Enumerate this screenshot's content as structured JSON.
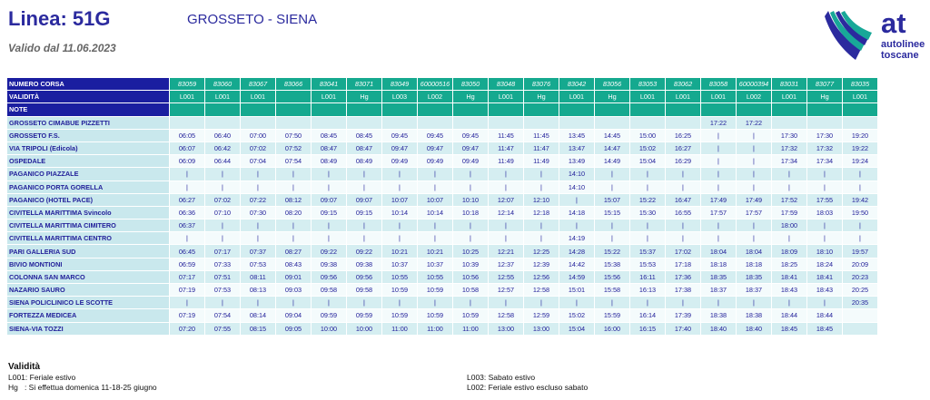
{
  "header": {
    "title": "Linea: 51G",
    "route": "GROSSETO - SIENA",
    "valid": "Valido dal 11.06.2023",
    "logo_at": "at",
    "logo_line1": "autolinee",
    "logo_line2": "toscane"
  },
  "colors": {
    "primary": "#1a1ea0",
    "teal": "#15a98f",
    "row_light": "#d5eef1",
    "label_bg": "#c9e8ed"
  },
  "table": {
    "labels": {
      "numero": "NUMERO CORSA",
      "validita": "VALIDITÀ",
      "note": "NOTE"
    },
    "runs": [
      "83059",
      "83060",
      "83067",
      "83066",
      "83041",
      "83071",
      "83049",
      "60000516",
      "83050",
      "83048",
      "83076",
      "83042",
      "83056",
      "83053",
      "83062",
      "83058",
      "60000394",
      "83031",
      "83077",
      "83035"
    ],
    "validita": [
      "L001",
      "L001",
      "L001",
      "",
      "L001",
      "Hg",
      "L003",
      "L002",
      "Hg",
      "L001",
      "Hg",
      "L001",
      "Hg",
      "L001",
      "L001",
      "L001",
      "L002",
      "L001",
      "Hg",
      "L001"
    ],
    "stops": [
      {
        "name": "GROSSETO CIMABUE PIZZETTI",
        "times": [
          "",
          "",
          "",
          "",
          "",
          "",
          "",
          "",
          "",
          "",
          "",
          "",
          "",
          "",
          "",
          "17:22",
          "17:22",
          "",
          "",
          ""
        ]
      },
      {
        "name": "GROSSETO F.S.",
        "times": [
          "06:05",
          "06:40",
          "07:00",
          "07:50",
          "08:45",
          "08:45",
          "09:45",
          "09:45",
          "09:45",
          "11:45",
          "11:45",
          "13:45",
          "14:45",
          "15:00",
          "16:25",
          "|",
          "|",
          "17:30",
          "17:30",
          "19:20"
        ]
      },
      {
        "name": "VIA TRIPOLI (Edicola)",
        "times": [
          "06:07",
          "06:42",
          "07:02",
          "07:52",
          "08:47",
          "08:47",
          "09:47",
          "09:47",
          "09:47",
          "11:47",
          "11:47",
          "13:47",
          "14:47",
          "15:02",
          "16:27",
          "|",
          "|",
          "17:32",
          "17:32",
          "19:22"
        ]
      },
      {
        "name": "OSPEDALE",
        "times": [
          "06:09",
          "06:44",
          "07:04",
          "07:54",
          "08:49",
          "08:49",
          "09:49",
          "09:49",
          "09:49",
          "11:49",
          "11:49",
          "13:49",
          "14:49",
          "15:04",
          "16:29",
          "|",
          "|",
          "17:34",
          "17:34",
          "19:24"
        ]
      },
      {
        "name": "PAGANICO PIAZZALE",
        "times": [
          "|",
          "|",
          "|",
          "|",
          "|",
          "|",
          "|",
          "|",
          "|",
          "|",
          "|",
          "14:10",
          "|",
          "|",
          "|",
          "|",
          "|",
          "|",
          "|",
          "|"
        ]
      },
      {
        "name": "PAGANICO PORTA GORELLA",
        "times": [
          "|",
          "|",
          "|",
          "|",
          "|",
          "|",
          "|",
          "|",
          "|",
          "|",
          "|",
          "14:10",
          "|",
          "|",
          "|",
          "|",
          "|",
          "|",
          "|",
          "|"
        ]
      },
      {
        "name": "PAGANICO (HOTEL PACE)",
        "times": [
          "06:27",
          "07:02",
          "07:22",
          "08:12",
          "09:07",
          "09:07",
          "10:07",
          "10:07",
          "10:10",
          "12:07",
          "12:10",
          "|",
          "15:07",
          "15:22",
          "16:47",
          "17:49",
          "17:49",
          "17:52",
          "17:55",
          "19:42"
        ]
      },
      {
        "name": "CIVITELLA MARITTIMA Svincolo",
        "times": [
          "06:36",
          "07:10",
          "07:30",
          "08:20",
          "09:15",
          "09:15",
          "10:14",
          "10:14",
          "10:18",
          "12:14",
          "12:18",
          "14:18",
          "15:15",
          "15:30",
          "16:55",
          "17:57",
          "17:57",
          "17:59",
          "18:03",
          "19:50"
        ]
      },
      {
        "name": "CIVITELLA MARITTIMA CIMITERO",
        "times": [
          "06:37",
          "|",
          "|",
          "|",
          "|",
          "|",
          "|",
          "|",
          "|",
          "|",
          "|",
          "|",
          "|",
          "|",
          "|",
          "|",
          "|",
          "18:00",
          "|",
          "|"
        ]
      },
      {
        "name": "CIVITELLA MARITTIMA CENTRO",
        "times": [
          "|",
          "|",
          "|",
          "|",
          "|",
          "|",
          "|",
          "|",
          "|",
          "|",
          "|",
          "14:19",
          "|",
          "|",
          "|",
          "|",
          "|",
          "|",
          "|",
          "|"
        ]
      },
      {
        "name": "PARI GALLERIA SUD",
        "times": [
          "06:45",
          "07:17",
          "07:37",
          "08:27",
          "09:22",
          "09:22",
          "10:21",
          "10:21",
          "10:25",
          "12:21",
          "12:25",
          "14:28",
          "15:22",
          "15:37",
          "17:02",
          "18:04",
          "18:04",
          "18:09",
          "18:10",
          "19:57"
        ]
      },
      {
        "name": "BIVIO MONTIONI",
        "times": [
          "06:59",
          "07:33",
          "07:53",
          "08:43",
          "09:38",
          "09:38",
          "10:37",
          "10:37",
          "10:39",
          "12:37",
          "12:39",
          "14:42",
          "15:38",
          "15:53",
          "17:18",
          "18:18",
          "18:18",
          "18:25",
          "18:24",
          "20:09"
        ]
      },
      {
        "name": "COLONNA SAN MARCO",
        "times": [
          "07:17",
          "07:51",
          "08:11",
          "09:01",
          "09:56",
          "09:56",
          "10:55",
          "10:55",
          "10:56",
          "12:55",
          "12:56",
          "14:59",
          "15:56",
          "16:11",
          "17:36",
          "18:35",
          "18:35",
          "18:41",
          "18:41",
          "20:23"
        ]
      },
      {
        "name": "NAZARIO SAURO",
        "times": [
          "07:19",
          "07:53",
          "08:13",
          "09:03",
          "09:58",
          "09:58",
          "10:59",
          "10:59",
          "10:58",
          "12:57",
          "12:58",
          "15:01",
          "15:58",
          "16:13",
          "17:38",
          "18:37",
          "18:37",
          "18:43",
          "18:43",
          "20:25"
        ]
      },
      {
        "name": "SIENA POLICLINICO LE SCOTTE",
        "times": [
          "|",
          "|",
          "|",
          "|",
          "|",
          "|",
          "|",
          "|",
          "|",
          "|",
          "|",
          "|",
          "|",
          "|",
          "|",
          "|",
          "|",
          "|",
          "|",
          "20:35"
        ]
      },
      {
        "name": "FORTEZZA MEDICEA",
        "times": [
          "07:19",
          "07:54",
          "08:14",
          "09:04",
          "09:59",
          "09:59",
          "10:59",
          "10:59",
          "10:59",
          "12:58",
          "12:59",
          "15:02",
          "15:59",
          "16:14",
          "17:39",
          "18:38",
          "18:38",
          "18:44",
          "18:44",
          ""
        ]
      },
      {
        "name": "SIENA-VIA TOZZI",
        "times": [
          "07:20",
          "07:55",
          "08:15",
          "09:05",
          "10:00",
          "10:00",
          "11:00",
          "11:00",
          "11:00",
          "13:00",
          "13:00",
          "15:04",
          "16:00",
          "16:15",
          "17:40",
          "18:40",
          "18:40",
          "18:45",
          "18:45",
          ""
        ]
      }
    ]
  },
  "legend": {
    "title": "Validità",
    "items": [
      "L001: Feriale estivo",
      "Hg   : Si effettua domenica 11-18-25 giugno",
      "L003: Sabato estivo",
      "L002: Feriale estivo escluso sabato"
    ]
  }
}
